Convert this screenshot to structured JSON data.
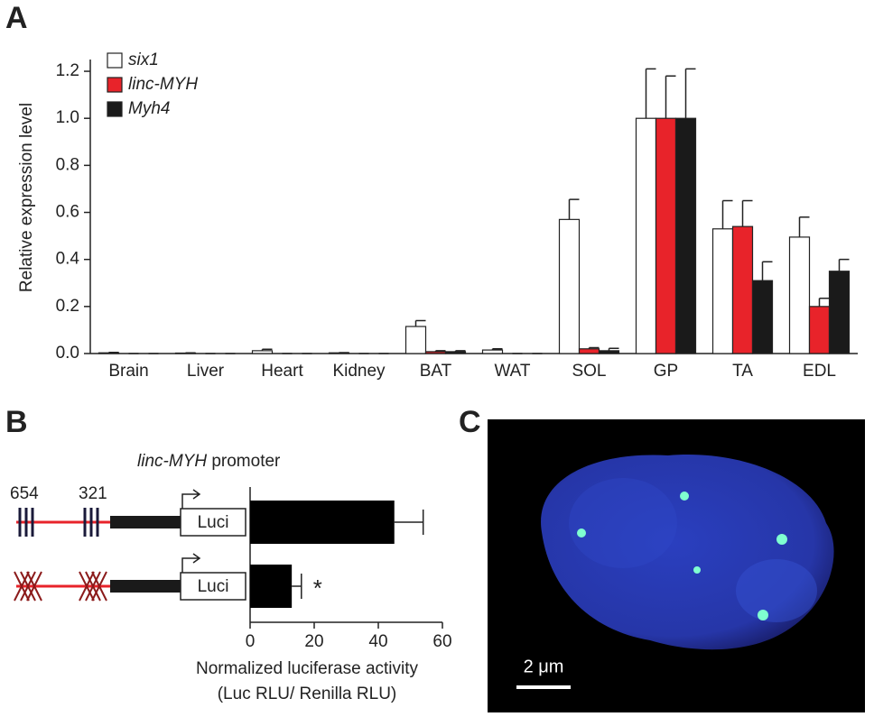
{
  "panel_labels": [
    "A",
    "B",
    "C"
  ],
  "chart_data": [
    {
      "type": "bar",
      "y_label": "Relative expression level",
      "categories": [
        "Brain",
        "Liver",
        "Heart",
        "Kidney",
        "BAT",
        "WAT",
        "SOL",
        "GP",
        "TA",
        "EDL"
      ],
      "series": [
        {
          "name": "six1",
          "color": "#ffffff",
          "values": [
            0.003,
            0.002,
            0.012,
            0.003,
            0.115,
            0.015,
            0.57,
            1.0,
            0.53,
            0.495
          ],
          "errors": [
            0.002,
            0.001,
            0.006,
            0.001,
            0.025,
            0.005,
            0.085,
            0.21,
            0.12,
            0.085
          ]
        },
        {
          "name": "linc-MYH",
          "color": "#e8232a",
          "values": [
            0,
            0,
            0,
            0,
            0.008,
            0,
            0.02,
            1.0,
            0.54,
            0.2
          ],
          "errors": [
            0,
            0,
            0,
            0,
            0.004,
            0,
            0.005,
            0.18,
            0.11,
            0.035
          ]
        },
        {
          "name": "Myh4",
          "color": "#1a1a1a",
          "values": [
            0,
            0,
            0,
            0,
            0.008,
            0,
            0.012,
            1.0,
            0.31,
            0.35
          ],
          "errors": [
            0,
            0,
            0,
            0,
            0.004,
            0,
            0.01,
            0.21,
            0.08,
            0.05
          ]
        }
      ],
      "ylim": [
        0,
        1.25
      ],
      "yticks": [
        {
          "value": 0,
          "label": "0.0"
        },
        0.2,
        0.4,
        0.6,
        0.8,
        {
          "value": 1,
          "label": "1.0"
        },
        1.2
      ],
      "legend": "upper left"
    },
    {
      "type": "bar",
      "orientation": "horizontal",
      "categories": [
        null,
        null
      ],
      "values": [
        45,
        13
      ],
      "errors": [
        9,
        3
      ],
      "color": "#000000",
      "annotation": "*",
      "xlim": [
        0,
        60
      ],
      "xticks": [
        0,
        20,
        40,
        60
      ],
      "x_label": [
        "Normalized luciferase activity",
        "(Luc RLU/ Renilla RLU)"
      ]
    }
  ],
  "promoter": {
    "gene": "linc-MYH",
    "label": "promoter",
    "sites_left": "654",
    "sites_right": "321",
    "reporter": [
      "Luci",
      "Luci"
    ]
  },
  "image": {
    "scale_bar": "2 μm"
  }
}
